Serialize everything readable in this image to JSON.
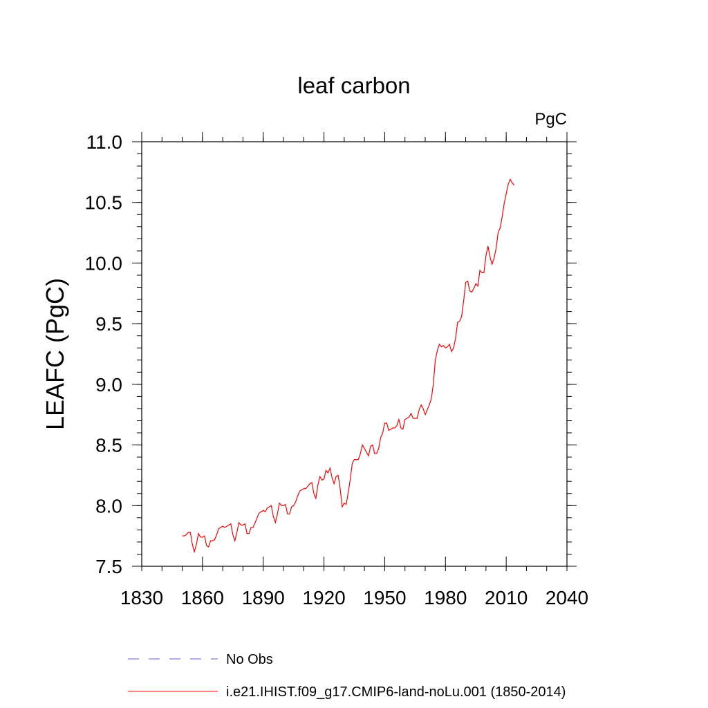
{
  "chart_data": {
    "type": "line",
    "title": "leaf carbon",
    "units": "PgC",
    "ylabel": "LEAFC  (PgC)",
    "xlabel": "",
    "xlim": [
      1830,
      2040
    ],
    "ylim": [
      7.5,
      11.0
    ],
    "xticks": [
      "1830",
      "1860",
      "1890",
      "1920",
      "1950",
      "1980",
      "2010",
      "2040"
    ],
    "yticks": [
      "7.5",
      "8.0",
      "8.5",
      "9.0",
      "9.5",
      "10.0",
      "10.5",
      "11.0"
    ],
    "grid": false,
    "legend_position": "bottom",
    "series": [
      {
        "name": "No Obs",
        "color": "#6a5acd",
        "style": "dashed",
        "x": [],
        "y": []
      },
      {
        "name": "i.e21.IHIST.f09_g17.CMIP6-land-noLu.001 (1850-2014)",
        "color": "#ff0000",
        "style": "solid",
        "x": [
          1850,
          1851,
          1852,
          1853,
          1854,
          1855,
          1856,
          1857,
          1858,
          1859,
          1860,
          1861,
          1862,
          1863,
          1864,
          1865,
          1866,
          1867,
          1868,
          1869,
          1870,
          1871,
          1872,
          1873,
          1874,
          1875,
          1876,
          1877,
          1878,
          1879,
          1880,
          1881,
          1882,
          1883,
          1884,
          1885,
          1886,
          1887,
          1888,
          1889,
          1890,
          1891,
          1892,
          1893,
          1894,
          1895,
          1896,
          1897,
          1898,
          1899,
          1900,
          1901,
          1902,
          1903,
          1904,
          1905,
          1906,
          1907,
          1908,
          1909,
          1910,
          1911,
          1912,
          1913,
          1914,
          1915,
          1916,
          1917,
          1918,
          1919,
          1920,
          1921,
          1922,
          1923,
          1924,
          1925,
          1926,
          1927,
          1928,
          1929,
          1930,
          1931,
          1932,
          1933,
          1934,
          1935,
          1936,
          1937,
          1938,
          1939,
          1940,
          1941,
          1942,
          1943,
          1944,
          1945,
          1946,
          1947,
          1948,
          1949,
          1950,
          1951,
          1952,
          1953,
          1954,
          1955,
          1956,
          1957,
          1958,
          1959,
          1960,
          1961,
          1962,
          1963,
          1964,
          1965,
          1966,
          1967,
          1968,
          1969,
          1970,
          1971,
          1972,
          1973,
          1974,
          1975,
          1976,
          1977,
          1978,
          1979,
          1980,
          1981,
          1982,
          1983,
          1984,
          1985,
          1986,
          1987,
          1988,
          1989,
          1990,
          1991,
          1992,
          1993,
          1994,
          1995,
          1996,
          1997,
          1998,
          1999,
          2000,
          2001,
          2002,
          2003,
          2004,
          2005,
          2006,
          2007,
          2008,
          2009,
          2010,
          2011,
          2012,
          2013,
          2014
        ],
        "y": [
          7.75,
          7.75,
          7.76,
          7.78,
          7.78,
          7.68,
          7.62,
          7.68,
          7.77,
          7.74,
          7.74,
          7.75,
          7.67,
          7.66,
          7.71,
          7.71,
          7.72,
          7.76,
          7.81,
          7.82,
          7.83,
          7.82,
          7.83,
          7.84,
          7.85,
          7.76,
          7.71,
          7.78,
          7.86,
          7.84,
          7.84,
          7.85,
          7.77,
          7.77,
          7.82,
          7.82,
          7.86,
          7.9,
          7.94,
          7.95,
          7.96,
          7.95,
          7.98,
          7.99,
          8.0,
          7.91,
          7.86,
          7.93,
          8.02,
          8.0,
          8.0,
          8.01,
          7.93,
          7.93,
          7.99,
          8.0,
          8.03,
          8.08,
          8.12,
          8.13,
          8.14,
          8.14,
          8.16,
          8.18,
          8.19,
          8.1,
          8.06,
          8.17,
          8.24,
          8.21,
          8.22,
          8.29,
          8.27,
          8.31,
          8.23,
          8.18,
          8.24,
          8.25,
          8.14,
          7.99,
          8.02,
          8.01,
          8.11,
          8.22,
          8.35,
          8.38,
          8.38,
          8.38,
          8.43,
          8.5,
          8.47,
          8.44,
          8.41,
          8.49,
          8.5,
          8.43,
          8.43,
          8.47,
          8.56,
          8.6,
          8.68,
          8.68,
          8.62,
          8.63,
          8.64,
          8.64,
          8.66,
          8.71,
          8.64,
          8.63,
          8.71,
          8.72,
          8.73,
          8.76,
          8.72,
          8.72,
          8.72,
          8.79,
          8.83,
          8.8,
          8.75,
          8.79,
          8.83,
          8.88,
          9.0,
          9.2,
          9.28,
          9.33,
          9.31,
          9.32,
          9.3,
          9.31,
          9.33,
          9.27,
          9.3,
          9.38,
          9.51,
          9.52,
          9.56,
          9.69,
          9.84,
          9.85,
          9.77,
          9.76,
          9.79,
          9.83,
          9.81,
          9.94,
          9.92,
          9.92,
          10.06,
          10.14,
          10.05,
          9.99,
          10.04,
          10.12,
          10.25,
          10.29,
          10.38,
          10.49,
          10.57,
          10.65,
          10.69,
          10.66,
          10.64
        ]
      }
    ]
  }
}
